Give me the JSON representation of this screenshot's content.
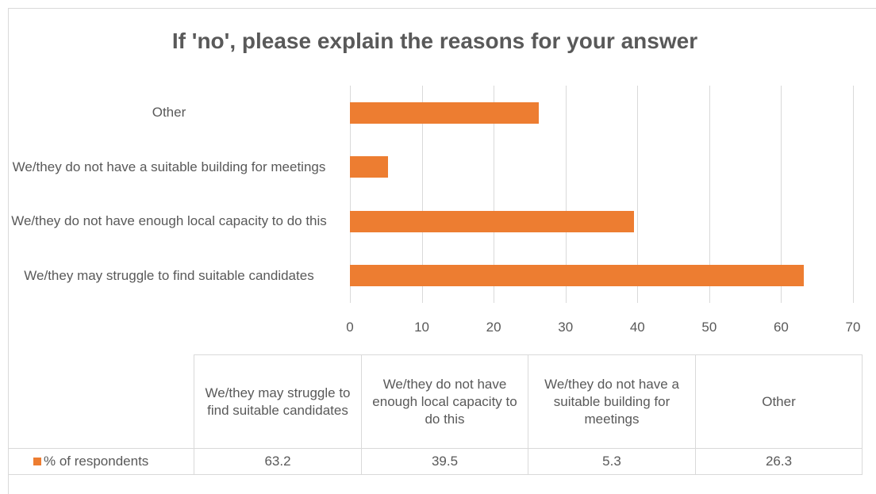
{
  "chart_data": {
    "type": "bar",
    "orientation": "horizontal",
    "title": "If 'no', please explain the reasons for your answer",
    "categories": [
      "We/they may struggle to find suitable candidates",
      "We/they do not have enough local capacity to do this",
      "We/they do not have a suitable building for meetings",
      "Other"
    ],
    "series": [
      {
        "name": "% of respondents",
        "color": "#ed7d31",
        "values": [
          63.2,
          39.5,
          5.3,
          26.3
        ]
      }
    ],
    "xlim": [
      0,
      70
    ],
    "xticks": [
      0,
      10,
      20,
      30,
      40,
      50,
      60,
      70
    ],
    "grid": true,
    "data_table": true
  }
}
